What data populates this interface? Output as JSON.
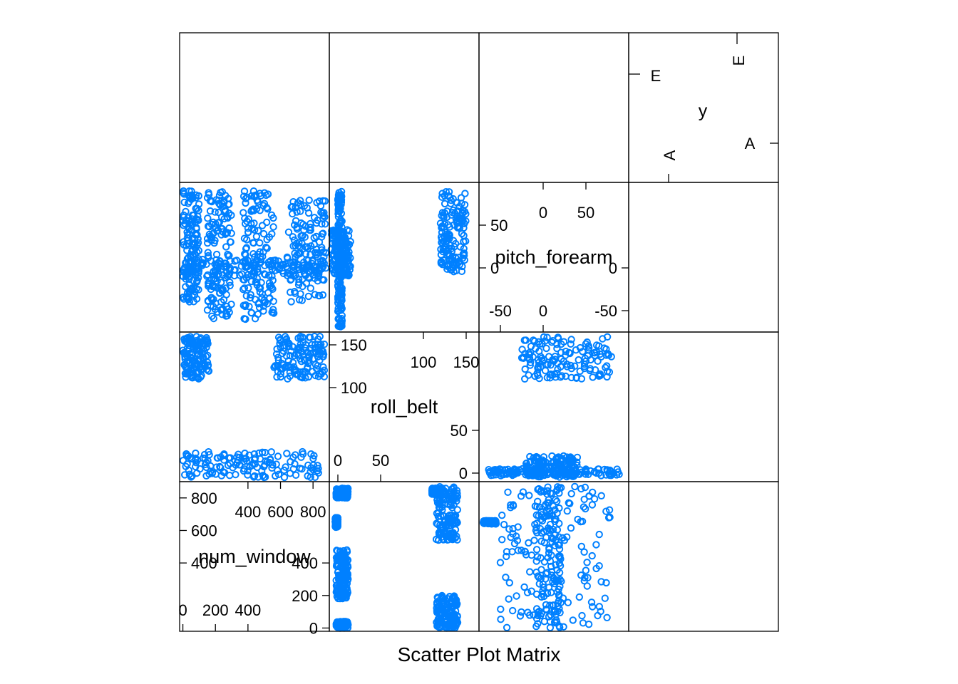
{
  "chart_data": {
    "type": "scatter",
    "title": "",
    "xlabel": "Scatter Plot Matrix",
    "ylabel": "",
    "grid": false,
    "legend": "none",
    "point_color": "#0080FF",
    "variables": [
      {
        "name": "num_window",
        "range": [
          -20,
          900
        ],
        "ticks_low": [
          "0",
          "200",
          "400"
        ],
        "ticks_high": [
          "400",
          "600",
          "800"
        ],
        "ticks_left": [
          "0",
          "200",
          "400",
          "600",
          "800"
        ]
      },
      {
        "name": "roll_belt",
        "range": [
          -10,
          165
        ],
        "ticks_low": [
          "0",
          "50"
        ],
        "ticks_high": [
          "100",
          "150"
        ],
        "ticks_left": [
          "0",
          "50",
          "100",
          "150"
        ]
      },
      {
        "name": "pitch_forearm",
        "range": [
          -75,
          100
        ],
        "ticks_low": [
          "-50",
          "0"
        ],
        "ticks_high": [
          "0",
          "50"
        ],
        "ticks_left": [
          "-50",
          "0",
          "50"
        ]
      },
      {
        "name": "y",
        "levels": [
          "A",
          "E"
        ]
      }
    ],
    "series": [
      {
        "pair": [
          "roll_belt",
          "num_window"
        ],
        "clusters": [
          {
            "x": [
              -2,
              12
            ],
            "y": [
              0,
              40
            ]
          },
          {
            "x": [
              -2,
              12
            ],
            "y": [
              180,
              480
            ]
          },
          {
            "x": [
              -2,
              12
            ],
            "y": [
              800,
              860
            ]
          },
          {
            "x": [
              -3,
              0
            ],
            "y": [
              620,
              680
            ]
          },
          {
            "x": [
              115,
              140
            ],
            "y": [
              0,
              200
            ]
          },
          {
            "x": [
              115,
              140
            ],
            "y": [
              540,
              870
            ]
          },
          {
            "x": [
              110,
              120
            ],
            "y": [
              820,
              860
            ]
          }
        ]
      },
      {
        "pair": [
          "pitch_forearm",
          "num_window"
        ],
        "clusters": [
          {
            "x": [
              -50,
              80
            ],
            "y": [
              0,
              870
            ]
          },
          {
            "x": [
              -10,
              20
            ],
            "y": [
              0,
              870
            ]
          },
          {
            "x": [
              -70,
              -55
            ],
            "y": [
              640,
              660
            ]
          }
        ]
      },
      {
        "pair": [
          "num_window",
          "roll_belt"
        ],
        "clusters": [
          {
            "x": [
              0,
              850
            ],
            "y": [
              -5,
              25
            ]
          },
          {
            "x": [
              0,
              160
            ],
            "y": [
              110,
              160
            ]
          },
          {
            "x": [
              560,
              870
            ],
            "y": [
              110,
              160
            ]
          }
        ]
      },
      {
        "pair": [
          "pitch_forearm",
          "roll_belt"
        ],
        "clusters": [
          {
            "x": [
              -65,
              90
            ],
            "y": [
              -3,
              5
            ]
          },
          {
            "x": [
              -20,
              40
            ],
            "y": [
              -5,
              20
            ]
          },
          {
            "x": [
              -25,
              80
            ],
            "y": [
              110,
              160
            ]
          }
        ]
      },
      {
        "pair": [
          "num_window",
          "pitch_forearm"
        ],
        "clusters": [
          {
            "x": [
              0,
              880
            ],
            "y": [
              -10,
              10
            ]
          },
          {
            "x": [
              0,
              100
            ],
            "y": [
              -40,
              90
            ]
          },
          {
            "x": [
              150,
              300
            ],
            "y": [
              -60,
              90
            ]
          },
          {
            "x": [
              370,
              560
            ],
            "y": [
              -60,
              90
            ]
          },
          {
            "x": [
              640,
              880
            ],
            "y": [
              -40,
              80
            ]
          }
        ]
      },
      {
        "pair": [
          "roll_belt",
          "pitch_forearm"
        ],
        "clusters": [
          {
            "x": [
              0,
              5
            ],
            "y": [
              -70,
              90
            ]
          },
          {
            "x": [
              -8,
              15
            ],
            "y": [
              -10,
              45
            ]
          },
          {
            "x": [
              120,
              150
            ],
            "y": [
              -5,
              90
            ]
          }
        ]
      }
    ]
  }
}
